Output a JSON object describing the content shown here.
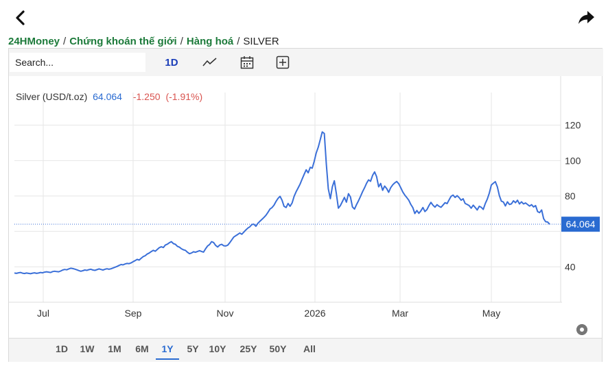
{
  "header": {
    "back_icon": "chevron-left-icon",
    "share_icon": "share-arrow-icon"
  },
  "breadcrumb": {
    "items": [
      "24HMoney",
      "Chứng khoán thế giới",
      "Hàng hoá"
    ],
    "current": "SILVER",
    "separator": "/"
  },
  "toolbar": {
    "search_placeholder": "Search...",
    "interval_label": "1D",
    "icons": [
      "line-chart-icon",
      "calendar-icon",
      "add-square-icon"
    ]
  },
  "quote": {
    "name": "Silver (USD/t.oz)",
    "price": "64.064",
    "change": "-1.250",
    "change_pct": "(-1.91%)",
    "price_color": "#2a6bd1",
    "change_color": "#d9534f"
  },
  "range_buttons": [
    "1D",
    "1W",
    "1M",
    "6M",
    "1Y",
    "5Y",
    "10Y",
    "25Y",
    "50Y",
    "All"
  ],
  "active_range": "1Y",
  "settings_icon": "gear-icon",
  "chart_data": {
    "type": "line",
    "title": "",
    "xlabel": "",
    "ylabel": "",
    "x_tick_labels": [
      "Jul",
      "Sep",
      "Nov",
      "2026",
      "Mar",
      "May"
    ],
    "y_ticks": [
      40,
      60,
      80,
      100,
      120
    ],
    "y_tick_labels_shown": [
      "40",
      "80",
      "100",
      "120"
    ],
    "ylim": [
      20,
      140
    ],
    "grid": true,
    "line_color": "#3a6fd8",
    "last_value_label": "64.064",
    "series": [
      {
        "values": [
          36.5,
          36.3,
          36.6,
          36.8,
          36.4,
          36.2,
          36.5,
          36.3,
          36.1,
          36.4,
          36.6,
          36.3,
          36.5,
          36.8,
          36.6,
          37.0,
          37.2,
          37.0,
          36.8,
          37.3,
          37.5,
          37.3,
          37.2,
          37.6,
          38.2,
          38.5,
          38.3,
          38.8,
          39.2,
          39.0,
          38.7,
          38.3,
          37.9,
          37.5,
          37.8,
          38.2,
          38.0,
          38.4,
          38.6,
          38.2,
          38.0,
          38.4,
          38.8,
          38.5,
          38.2,
          38.6,
          38.9,
          38.6,
          38.9,
          39.3,
          39.8,
          40.2,
          40.8,
          41.3,
          41.1,
          41.6,
          41.9,
          41.8,
          42.2,
          42.9,
          43.5,
          44.2,
          43.8,
          44.8,
          45.8,
          46.3,
          47.2,
          47.8,
          48.6,
          49.3,
          48.8,
          49.8,
          50.8,
          51.3,
          50.9,
          52.3,
          52.8,
          53.6,
          54.2,
          53.1,
          52.7,
          51.6,
          51.1,
          50.2,
          49.6,
          49.3,
          48.2,
          47.4,
          47.8,
          48.5,
          48.2,
          48.7,
          49.1,
          48.7,
          48.3,
          50.2,
          51.8,
          52.6,
          54.2,
          53.7,
          52.1,
          51.2,
          52.3,
          52.7,
          51.9,
          51.8,
          52.2,
          53.6,
          55.2,
          56.8,
          57.6,
          58.3,
          59.1,
          58.4,
          59.6,
          60.8,
          61.9,
          62.6,
          63.9,
          64.1,
          62.9,
          64.6,
          65.7,
          66.8,
          67.9,
          69.1,
          70.8,
          72.6,
          73.4,
          74.8,
          76.9,
          78.6,
          79.8,
          77.6,
          74.2,
          73.5,
          75.8,
          74.2,
          76.1,
          79.8,
          82.4,
          84.6,
          86.8,
          89.6,
          92.3,
          94.8,
          93.1,
          96.2,
          95.7,
          99.6,
          104.3,
          107.6,
          111.8,
          116.2,
          115.3,
          98.2,
          84.1,
          78.5,
          85.2,
          88.6,
          81.2,
          73.1,
          74.6,
          76.9,
          79.2,
          76.5,
          81.3,
          79.4,
          73.8,
          72.6,
          75.1,
          77.3,
          79.8,
          82.4,
          84.6,
          87.2,
          89.1,
          88.3,
          91.7,
          93.6,
          90.9,
          85.2,
          87.1,
          83.2,
          85.6,
          84.2,
          82.1,
          84.7,
          86.3,
          87.4,
          88.2,
          86.9,
          84.7,
          82.3,
          80.5,
          79.1,
          77.6,
          75.2,
          73.4,
          70.1,
          71.8,
          70.2,
          71.6,
          73.5,
          71.2,
          72.3,
          74.6,
          76.4,
          74.8,
          73.7,
          75.1,
          74.2,
          73.6,
          74.9,
          76.2,
          75.7,
          77.8,
          79.8,
          80.5,
          79.2,
          80.2,
          79.1,
          77.6,
          78.4,
          75.8,
          75.2,
          74.6,
          73.1,
          74.8,
          73.5,
          72.1,
          74.2,
          73.6,
          72.4,
          75.8,
          78.2,
          81.6,
          86.2,
          87.2,
          88.1,
          85.1,
          80.2,
          77.1,
          76.6,
          74.4,
          76.7,
          75.2,
          75.6,
          77.3,
          76.2,
          77.6,
          75.5,
          76.7,
          75.5,
          76.1,
          75.2,
          74.3,
          75.1,
          73.8,
          74.6,
          71.2,
          70.6,
          72.1,
          67.2,
          65.5,
          65.3,
          64.064
        ]
      }
    ]
  }
}
